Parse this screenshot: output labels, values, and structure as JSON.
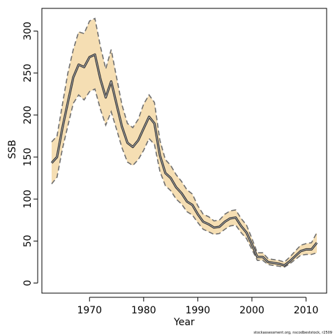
{
  "chart_data": {
    "type": "line",
    "title": "",
    "xlabel": "Year",
    "ylabel": "SSB",
    "xlim": [
      1961.2,
      2013.8
    ],
    "ylim": [
      -12,
      327
    ],
    "xticks": [
      1970,
      1980,
      1990,
      2000,
      2010
    ],
    "yticks": [
      0,
      50,
      100,
      150,
      200,
      250,
      300
    ],
    "grid": false,
    "legend": "none",
    "colors": {
      "band_fill": "#f5deb3",
      "band_edge": "#6e6e6e",
      "line_outer": "#333333",
      "line_inner": "#cccccc",
      "frame": "#000000"
    },
    "x": [
      1963,
      1964,
      1965,
      1966,
      1967,
      1968,
      1969,
      1970,
      1971,
      1972,
      1973,
      1974,
      1975,
      1976,
      1977,
      1978,
      1979,
      1980,
      1981,
      1982,
      1983,
      1984,
      1985,
      1986,
      1987,
      1988,
      1989,
      1990,
      1991,
      1992,
      1993,
      1994,
      1995,
      1996,
      1997,
      1998,
      1999,
      2000,
      2001,
      2002,
      2003,
      2004,
      2005,
      2006,
      2007,
      2008,
      2009,
      2010,
      2011,
      2012
    ],
    "series": [
      {
        "values": [
          143,
          150,
          185,
          215,
          245,
          260,
          257,
          269,
          272,
          243,
          221,
          240,
          213,
          186,
          167,
          162,
          170,
          184,
          198,
          190,
          152,
          131,
          125,
          114,
          107,
          97,
          93,
          82,
          73,
          70,
          66,
          67,
          73,
          77,
          78,
          68,
          60,
          46,
          31,
          31,
          25,
          24,
          23,
          21,
          26,
          32,
          38,
          40,
          40,
          48
        ]
      }
    ],
    "upper": [
      168,
      175,
      213,
      250,
      278,
      299,
      297,
      312,
      315,
      282,
      255,
      278,
      245,
      212,
      190,
      185,
      195,
      213,
      224,
      215,
      170,
      147,
      140,
      129,
      121,
      111,
      106,
      92,
      82,
      79,
      74,
      75,
      82,
      86,
      87,
      77,
      69,
      53,
      36,
      36,
      29,
      28,
      27,
      25,
      31,
      38,
      45,
      47,
      48,
      60
    ],
    "lower": [
      118,
      126,
      160,
      187,
      214,
      224,
      218,
      228,
      231,
      207,
      188,
      204,
      183,
      161,
      144,
      140,
      147,
      158,
      172,
      165,
      133,
      116,
      110,
      100,
      94,
      85,
      81,
      72,
      64,
      61,
      58,
      59,
      64,
      68,
      69,
      60,
      53,
      40,
      27,
      27,
      22,
      21,
      20,
      19,
      23,
      28,
      33,
      34,
      34,
      36
    ]
  },
  "footnote": "stockassessment.org, nscodbeststock, r2509"
}
